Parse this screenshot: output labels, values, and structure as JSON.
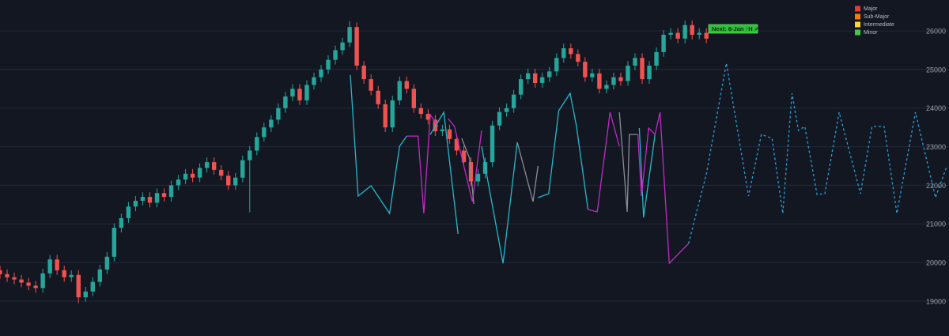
{
  "chart_data": {
    "type": "candlestick",
    "up_color": "#26a69a",
    "down_color": "#ef5350",
    "grid": true,
    "grid_color": "#232838",
    "xlim": [
      0,
      133
    ],
    "ylim": [
      18200,
      26800
    ],
    "yticks": [
      19000,
      20000,
      21000,
      22000,
      23000,
      24000,
      25000,
      26000
    ],
    "open": [
      19800,
      19700,
      19620,
      19560,
      19480,
      19400,
      19340,
      19720,
      20080,
      19800,
      19620,
      19680,
      19100,
      19250,
      19500,
      19820,
      20150,
      20900,
      21150,
      21450,
      21600,
      21700,
      21550,
      21800,
      21700,
      22000,
      22150,
      22300,
      22200,
      22450,
      22600,
      22400,
      22250,
      22000,
      22200,
      22650,
      22900,
      23250,
      23500,
      23700,
      24000,
      24300,
      24500,
      24200,
      24600,
      24800,
      25000,
      25250,
      25500,
      25700,
      26100,
      25100,
      24750,
      24450,
      24100,
      23500,
      24200,
      24700,
      24500,
      24000,
      23850,
      23700,
      23400,
      23450,
      23200,
      22900,
      22600,
      22100,
      22300,
      22600,
      23550,
      23900,
      24000,
      24350,
      24750,
      24900,
      24650,
      24800,
      24950,
      25300,
      25550,
      25400,
      25200,
      24800,
      24900,
      24500,
      24600,
      24800,
      24700,
      25100,
      25300,
      24750,
      25100,
      25450,
      25900,
      25950,
      25800,
      26150,
      25900,
      25950
    ],
    "high": [
      19920,
      19820,
      19740,
      19680,
      19600,
      19520,
      19840,
      20200,
      20200,
      19920,
      19800,
      19800,
      19370,
      19620,
      19940,
      20270,
      21020,
      21270,
      21570,
      21720,
      21820,
      21820,
      21920,
      21920,
      22120,
      22270,
      22420,
      22420,
      22570,
      22720,
      22720,
      22520,
      22370,
      22320,
      22770,
      23020,
      23370,
      23620,
      23820,
      24120,
      24420,
      24620,
      24620,
      24720,
      24920,
      25120,
      25370,
      25620,
      25820,
      26250,
      26220,
      25220,
      24870,
      24570,
      24220,
      24320,
      24820,
      24820,
      24620,
      24120,
      23970,
      23820,
      23570,
      23570,
      23320,
      23020,
      22720,
      22420,
      22720,
      23670,
      24020,
      24120,
      24470,
      24870,
      25020,
      25020,
      24920,
      25070,
      25420,
      25670,
      25670,
      25520,
      25320,
      25020,
      25020,
      24720,
      24920,
      24920,
      25220,
      25420,
      25420,
      25220,
      25570,
      26020,
      26070,
      26070,
      26270,
      26270,
      26070,
      26070
    ],
    "low": [
      19580,
      19500,
      19440,
      19360,
      19280,
      19220,
      19220,
      19600,
      19680,
      19500,
      19500,
      18950,
      18980,
      19130,
      19380,
      19700,
      20030,
      20780,
      21030,
      21330,
      21480,
      21430,
      21430,
      21580,
      21580,
      21880,
      22030,
      22080,
      22080,
      22330,
      22280,
      22130,
      21880,
      21880,
      22080,
      21300,
      22780,
      23130,
      23380,
      23580,
      23880,
      24180,
      24080,
      24080,
      24480,
      24680,
      24880,
      25130,
      25380,
      25580,
      24980,
      24630,
      24330,
      23980,
      23380,
      23380,
      24080,
      24380,
      23880,
      23730,
      23580,
      23280,
      23280,
      23080,
      22780,
      22480,
      21980,
      21980,
      22180,
      22480,
      23430,
      23780,
      23880,
      24230,
      24630,
      24530,
      24530,
      24680,
      24830,
      25180,
      25280,
      25080,
      24680,
      24680,
      24380,
      24380,
      24480,
      24580,
      24580,
      24980,
      24630,
      24630,
      24980,
      25330,
      25780,
      25680,
      25680,
      25780,
      25780,
      25680
    ],
    "close": [
      19700,
      19620,
      19560,
      19480,
      19400,
      19340,
      19720,
      20080,
      19800,
      19620,
      19680,
      19100,
      19250,
      19500,
      19820,
      20150,
      20900,
      21150,
      21450,
      21600,
      21700,
      21550,
      21800,
      21700,
      22000,
      22150,
      22300,
      22200,
      22450,
      22600,
      22400,
      22250,
      22000,
      22200,
      22650,
      22900,
      23250,
      23500,
      23700,
      24000,
      24300,
      24500,
      24200,
      24600,
      24800,
      25000,
      25250,
      25500,
      25700,
      26100,
      25100,
      24750,
      24450,
      24100,
      23500,
      24200,
      24700,
      24500,
      24000,
      23850,
      23700,
      23400,
      23450,
      23200,
      22900,
      22600,
      22100,
      22300,
      22600,
      23550,
      23900,
      24000,
      24350,
      24750,
      24900,
      24650,
      24800,
      24950,
      25300,
      25550,
      25400,
      25200,
      24800,
      24900,
      24500,
      24600,
      24800,
      24700,
      25100,
      25300,
      24750,
      25100,
      25450,
      25900,
      25950,
      25800,
      26150,
      25900,
      25950,
      25800
    ],
    "overlays": [
      {
        "color": "#26b7c9",
        "x": [
          49.1,
          50.2,
          52,
          54.6,
          56,
          57
        ],
        "y": [
          24854,
          21722,
          21988,
          21271,
          23011,
          23277
        ]
      },
      {
        "color": "#c02bc4",
        "x": [
          57,
          58.6,
          59.4,
          60.3,
          61.4
        ],
        "y": [
          23277,
          23277,
          21271,
          23830,
          23523
        ]
      },
      {
        "color": "#26b7c9",
        "x": [
          60.3,
          62.2,
          64.2
        ],
        "y": [
          23318,
          23892,
          20739
        ]
      },
      {
        "color": "#c02bc4",
        "x": [
          62.8,
          63.7,
          66.2,
          67.5
        ],
        "y": [
          23728,
          23523,
          21578,
          23421
        ]
      },
      {
        "color": "#8a8d94",
        "x": [
          64.7,
          65.8,
          66.4
        ],
        "y": [
          23216,
          22704,
          21517
        ]
      },
      {
        "color": "#26b7c9",
        "x": [
          67.5,
          68.6,
          70.5,
          72.5
        ],
        "y": [
          23011,
          21885,
          19981,
          23114
        ]
      },
      {
        "color": "#8a8d94",
        "x": [
          72.5,
          74.7,
          75.4
        ],
        "y": [
          23114,
          21578,
          22500
        ]
      },
      {
        "color": "#26b7c9",
        "x": [
          75.4,
          76.9,
          78.3,
          79.9,
          80.8,
          82.4
        ],
        "y": [
          21681,
          21783,
          23933,
          24383,
          23523,
          21374
        ]
      },
      {
        "color": "#c02bc4",
        "x": [
          82.4,
          83.7,
          85.5,
          86.8
        ],
        "y": [
          21374,
          21312,
          23892,
          23011
        ]
      },
      {
        "color": "#8a8d94",
        "x": [
          86.8,
          87.9,
          88.2,
          89.4
        ],
        "y": [
          23892,
          21312,
          23318,
          23318
        ]
      },
      {
        "color": "#26b7c9",
        "x": [
          89.6,
          90.2,
          91.8
        ],
        "y": [
          23482,
          21169,
          23318
        ]
      },
      {
        "color": "#c02bc4",
        "x": [
          89.4,
          89.9,
          90.9,
          91.8,
          92.5,
          93.8,
          96.5
        ],
        "y": [
          23318,
          21722,
          23482,
          23318,
          23892,
          19981,
          20494
        ]
      },
      {
        "color": "#2a9fd6",
        "dashed": true,
        "x": [
          96.5,
          99,
          101.8,
          104.9,
          106.7,
          108.2,
          109.7,
          111,
          111.9,
          112.8,
          114.5,
          115.6,
          117.6,
          120.6,
          122.2,
          123.9,
          125.7,
          128.3,
          131.1,
          132.7
        ],
        "y": [
          20494,
          22295,
          25161,
          21722,
          23318,
          23216,
          21271,
          24383,
          23421,
          23523,
          21763,
          21783,
          23892,
          21783,
          23523,
          23523,
          21271,
          23892,
          21681,
          22500
        ]
      }
    ],
    "legend": [
      {
        "name": "Major",
        "color": "#e53935"
      },
      {
        "name": "Sub-Major",
        "color": "#f57c00"
      },
      {
        "name": "Intermediate",
        "color": "#fdd835"
      },
      {
        "name": "Minor",
        "color": "#43c84a"
      }
    ],
    "annotation": {
      "text": "Next: 8-Jan ↑H ✓",
      "color": "#2fbf3a"
    }
  }
}
